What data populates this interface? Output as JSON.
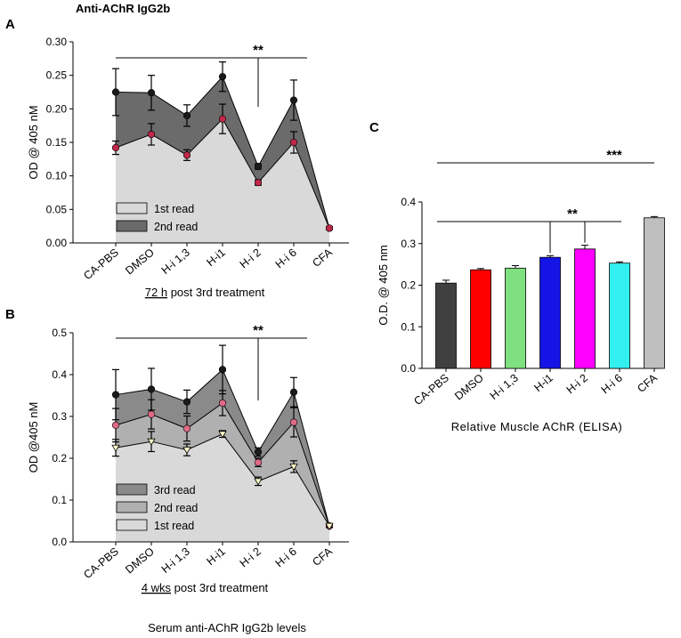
{
  "figure": {
    "top_title": "Anti-AChR IgG2b",
    "bottom_caption": "Serum anti-AChR IgG2b levels"
  },
  "chart_data": [
    {
      "panel": "A",
      "type": "area",
      "ylabel": "OD @ 405 nM",
      "xlabel_prefix": "72 h",
      "xlabel_suffix": " post 3rd treatment",
      "categories": [
        "CA-PBS",
        "DMSO",
        "H-i 1,3",
        "H-i1",
        "H-i 2",
        "H-i 6",
        "CFA"
      ],
      "ylim": [
        0,
        0.3
      ],
      "yticks": [
        "0.00",
        "0.05",
        "0.10",
        "0.15",
        "0.20",
        "0.25",
        "0.30"
      ],
      "legend": [
        "1st read",
        "2nd read"
      ],
      "series": [
        {
          "name": "2nd read",
          "values": [
            0.225,
            0.224,
            0.19,
            0.248,
            0.114,
            0.213,
            0.022
          ],
          "errors": [
            0.035,
            0.026,
            0.016,
            0.022,
            0.004,
            0.03,
            0.002
          ],
          "fill": "#6b6b6b",
          "marker": "#1a1a1a"
        },
        {
          "name": "1st read",
          "values": [
            0.142,
            0.162,
            0.131,
            0.185,
            0.09,
            0.15,
            0.022
          ],
          "errors": [
            0.01,
            0.016,
            0.008,
            0.022,
            0.004,
            0.016,
            0.002
          ],
          "fill": "#d9d9d9",
          "marker": "#c0284a"
        }
      ],
      "significance": {
        "label": "**",
        "from": "CA-PBS",
        "to": "H-i 6",
        "drop_at": "H-i 2"
      }
    },
    {
      "panel": "B",
      "type": "area",
      "ylabel": "OD @405 nM",
      "xlabel_prefix": "4 wks",
      "xlabel_suffix": " post 3rd treatment",
      "categories": [
        "CA-PBS",
        "DMSO",
        "H-i 1,3",
        "H-i1",
        "H-i 2",
        "H-i 6",
        "CFA"
      ],
      "ylim": [
        0,
        0.5
      ],
      "yticks": [
        "0.0",
        "0.1",
        "0.2",
        "0.3",
        "0.4",
        "0.5"
      ],
      "legend": [
        "3rd read",
        "2nd read",
        "1st read"
      ],
      "series": [
        {
          "name": "3rd read",
          "values": [
            0.352,
            0.365,
            0.335,
            0.412,
            0.215,
            0.358,
            0.038
          ],
          "errors": [
            0.06,
            0.05,
            0.028,
            0.058,
            0.01,
            0.035,
            0.003
          ],
          "fill": "#8a8a8a",
          "marker": "#1a1a1a"
        },
        {
          "name": "2nd read",
          "values": [
            0.279,
            0.305,
            0.271,
            0.332,
            0.19,
            0.286,
            0.038
          ],
          "errors": [
            0.04,
            0.035,
            0.03,
            0.03,
            0.01,
            0.035,
            0.003
          ],
          "fill": "#b0b0b0",
          "marker": "#e06a86"
        },
        {
          "name": "1st read",
          "values": [
            0.225,
            0.24,
            0.22,
            0.258,
            0.145,
            0.18,
            0.038
          ],
          "errors": [
            0.02,
            0.024,
            0.014,
            0.008,
            0.01,
            0.014,
            0.003
          ],
          "fill": "#d9d9d9",
          "marker": "#fffbc8"
        }
      ],
      "significance": {
        "label": "**",
        "from": "CA-PBS",
        "to": "H-i 6",
        "drop_at": "H-i 2"
      }
    },
    {
      "panel": "C",
      "type": "bar",
      "ylabel": "O.D. @ 405 nm",
      "xlabel": "Relative Muscle AChR (ELISA)",
      "categories": [
        "CA-PBS",
        "DMSO",
        "H-i 1,3",
        "H-i1",
        "H-i 2",
        "H-i 6",
        "CFA"
      ],
      "ylim": [
        0,
        0.4
      ],
      "yticks": [
        "0.0",
        "0.1",
        "0.2",
        "0.3",
        "0.4"
      ],
      "values": [
        0.205,
        0.237,
        0.241,
        0.267,
        0.287,
        0.253,
        0.362
      ],
      "errors": [
        0.007,
        0.003,
        0.006,
        0.004,
        0.009,
        0.003,
        0.003
      ],
      "colors": [
        "#404040",
        "#ff0000",
        "#7fe07f",
        "#1414e6",
        "#ff00ff",
        "#33f0f0",
        "#bfbfbf"
      ],
      "significance": [
        {
          "label": "***",
          "from": "CA-PBS",
          "to": "CFA"
        },
        {
          "label": "**",
          "from": "CA-PBS",
          "to": "H-i 6",
          "drops_at": [
            "H-i1",
            "H-i 2"
          ]
        }
      ]
    }
  ]
}
